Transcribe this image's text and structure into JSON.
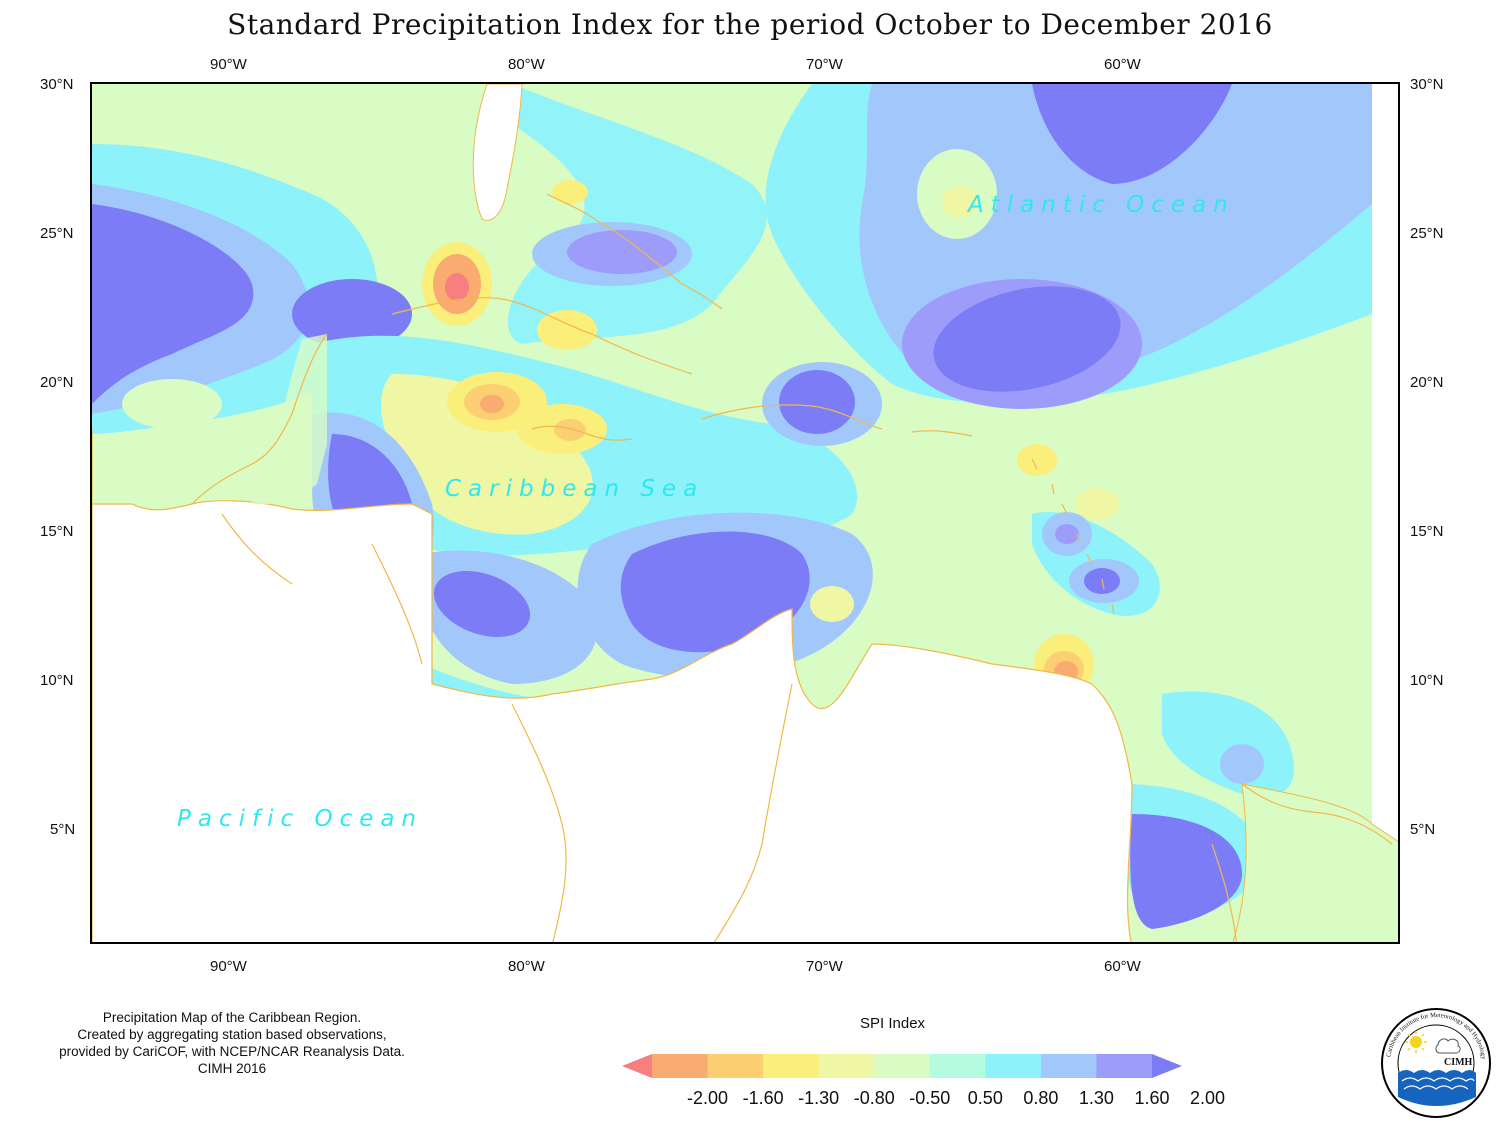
{
  "title": "Standard Precipitation Index for the period October to December 2016",
  "axes": {
    "lon_labels": [
      "90°W",
      "80°W",
      "70°W",
      "60°W"
    ],
    "lat_labels": [
      "30°N",
      "25°N",
      "20°N",
      "15°N",
      "10°N",
      "5°N"
    ]
  },
  "ocean_labels": {
    "atlantic": "Atlantic Ocean",
    "caribbean": "Caribbean Sea",
    "pacific": "Pacific Ocean"
  },
  "credit": {
    "line1": "Precipitation Map of the Caribbean Region.",
    "line2": "Created by aggregating station based observations,",
    "line3": "provided by CariCOF, with NCEP/NCAR Reanalysis Data.",
    "line4": "CIMH 2016"
  },
  "legend": {
    "title": "SPI Index",
    "values": [
      "-2.00",
      "-1.60",
      "-1.30",
      "-0.80",
      "-0.50",
      "0.50",
      "0.80",
      "1.30",
      "1.60",
      "2.00"
    ],
    "colors": [
      "#f77f7f",
      "#f9ab72",
      "#fbcf72",
      "#fbef7c",
      "#f0f7a4",
      "#d9fbc4",
      "#b4fbe0",
      "#8ef2fb",
      "#a2c8fb",
      "#9d9cfb",
      "#7c7cf7"
    ]
  },
  "logo": {
    "name": "CIMH",
    "ring_text": "Caribbean Institute for Meteorology and Hydrology"
  }
}
